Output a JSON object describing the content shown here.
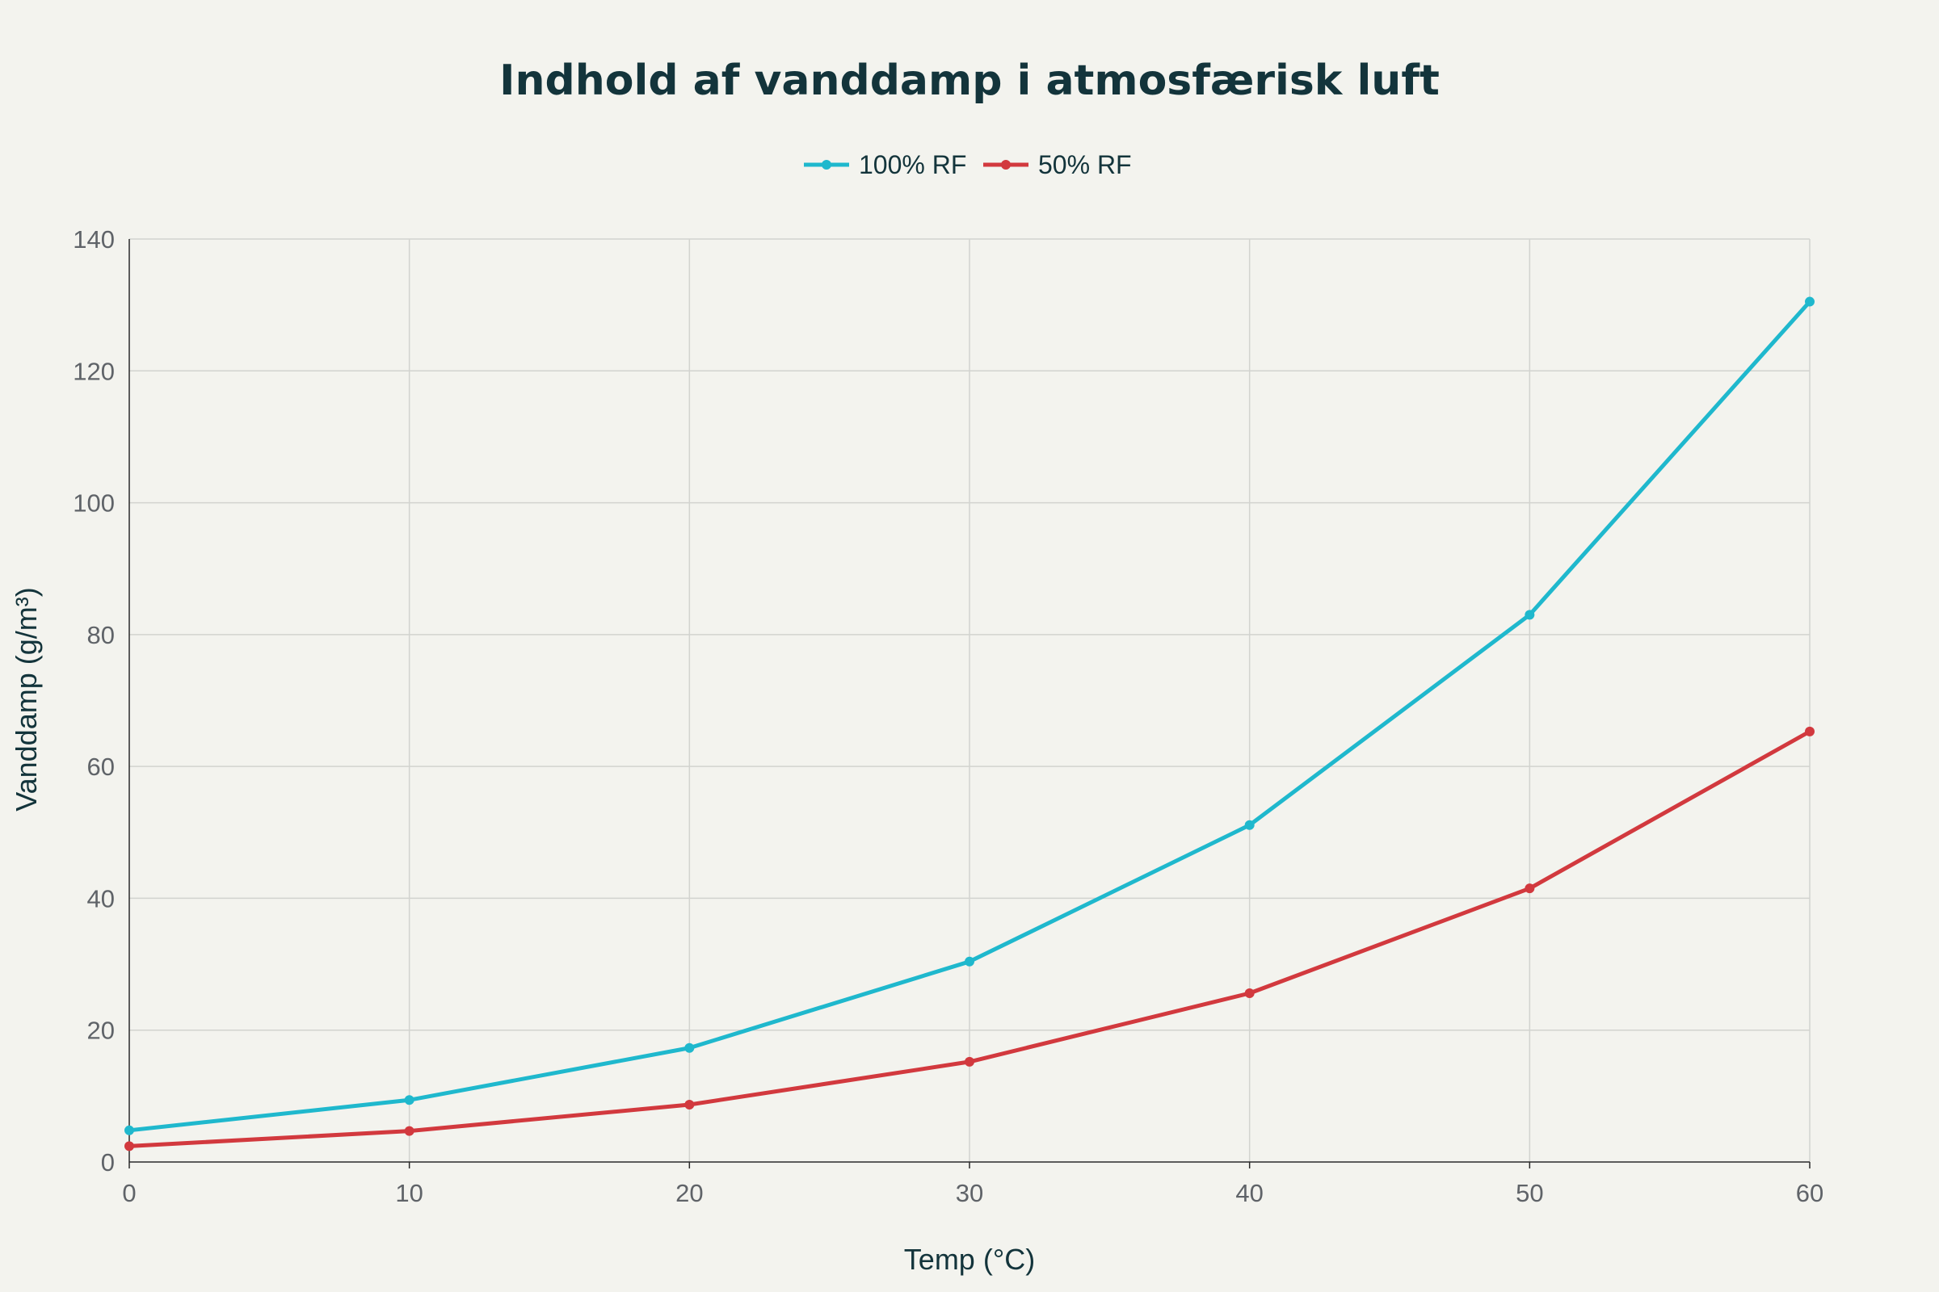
{
  "chart_data": {
    "type": "line",
    "title": "Indhold af vanddamp i atmosfærisk luft",
    "xlabel": "Temp (°C)",
    "ylabel": "Vanddamp (g/m³)",
    "x": [
      0,
      10,
      20,
      30,
      40,
      50,
      60
    ],
    "xlim": [
      0,
      60
    ],
    "ylim": [
      0,
      140
    ],
    "xticks": [
      "0",
      "10",
      "20",
      "30",
      "40",
      "50",
      "60"
    ],
    "yticks": [
      "0",
      "20",
      "40",
      "60",
      "80",
      "100",
      "120",
      "140"
    ],
    "grid": true,
    "legend_position": "top-center",
    "series": [
      {
        "name": "100% RF",
        "color": "#1fb8cd",
        "values": [
          4.8,
          9.4,
          17.3,
          30.4,
          51.1,
          83.0,
          130.5
        ]
      },
      {
        "name": "50% RF",
        "color": "#d2393e",
        "values": [
          2.4,
          4.7,
          8.7,
          15.2,
          25.6,
          41.5,
          65.3
        ]
      }
    ]
  }
}
